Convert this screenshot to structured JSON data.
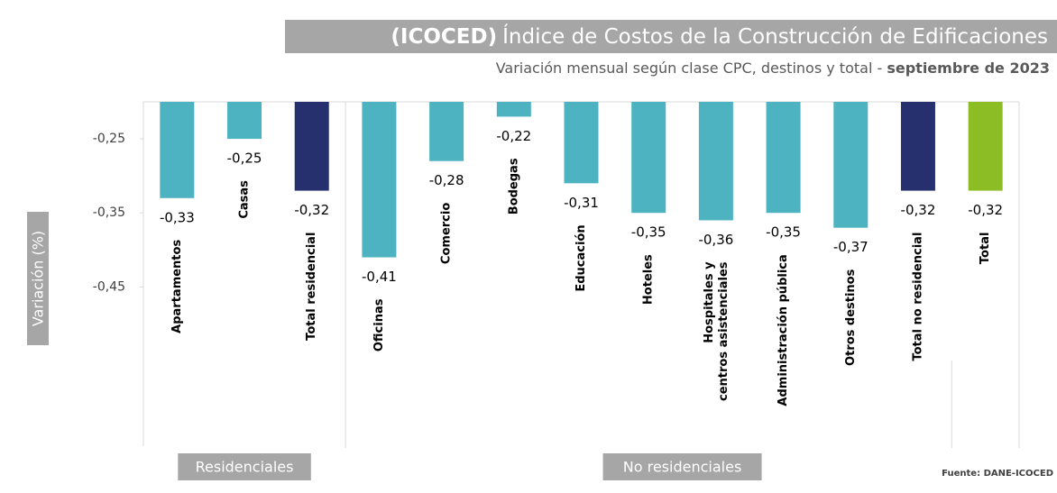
{
  "chart_data": {
    "type": "bar",
    "title_bold": "(ICOCED)",
    "title": "Índice de Costos de la Construcción de Edificaciones",
    "subtitle": "Variación mensual según clase CPC, destinos y total - ",
    "subtitle_bold": "septiembre de 2023",
    "y_label": "Variación (%)",
    "categories": [
      "Apartamentos",
      "Casas",
      "Total residencial",
      "Oficinas",
      "Comercio",
      "Bodegas",
      "Educación",
      "Hoteles",
      "Hospitales y centros asistenciales",
      "Administración pública",
      "Otros destinos",
      "Total no residencial",
      "Total"
    ],
    "values": [
      -0.33,
      -0.25,
      -0.32,
      -0.41,
      -0.28,
      -0.22,
      -0.31,
      -0.35,
      -0.36,
      -0.35,
      -0.37,
      -0.32,
      -0.32
    ],
    "value_labels": [
      "-0,33",
      "-0,25",
      "-0,32",
      "-0,41",
      "-0,28",
      "-0,22",
      "-0,31",
      "-0,35",
      "-0,36",
      "-0,35",
      "-0,37",
      "-0,32",
      "-0,32"
    ],
    "colors": [
      "#4db3c1",
      "#4db3c1",
      "#26306e",
      "#4db3c1",
      "#4db3c1",
      "#4db3c1",
      "#4db3c1",
      "#4db3c1",
      "#4db3c1",
      "#4db3c1",
      "#4db3c1",
      "#26306e",
      "#8cbd24"
    ],
    "ylim": [
      -0.665,
      -0.2
    ],
    "yticks": [
      {
        "value": -0.25,
        "label": "-0,25"
      },
      {
        "value": -0.35,
        "label": "-0,35"
      },
      {
        "value": -0.45,
        "label": "-0,45"
      }
    ],
    "groups": [
      {
        "name": "Residenciales",
        "count": 3
      },
      {
        "name": "No residenciales",
        "count": 10
      }
    ],
    "source": "Fuente: DANE-ICOCED"
  }
}
